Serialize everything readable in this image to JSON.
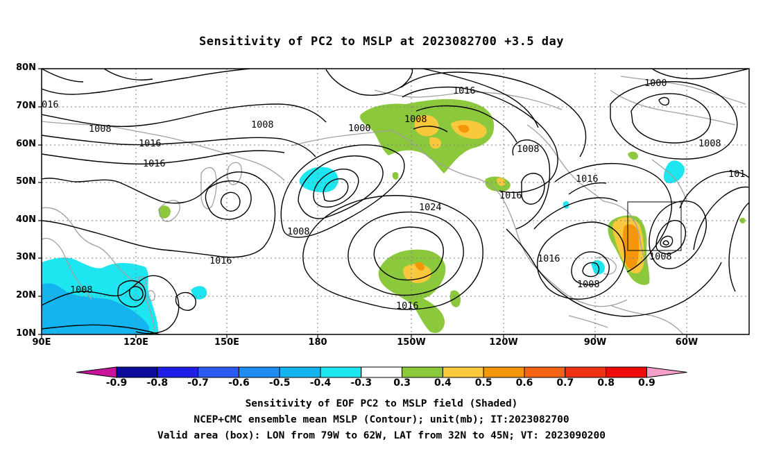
{
  "title": "Sensitivity of PC2 to MSLP at 2023082700 +3.5 day",
  "map": {
    "lat_ticks": [
      "80N",
      "70N",
      "60N",
      "50N",
      "40N",
      "30N",
      "20N",
      "10N"
    ],
    "lon_ticks": [
      "90E",
      "120E",
      "150E",
      "180",
      "150W",
      "120W",
      "90W",
      "60W"
    ],
    "lon_range": [
      "90E",
      "40W"
    ],
    "lat_range": [
      "10N",
      "80N"
    ],
    "grid": true,
    "contour_labels": [
      {
        "id": "c1",
        "text": "1016"
      },
      {
        "id": "c2",
        "text": "1008"
      },
      {
        "id": "c3",
        "text": "1016"
      },
      {
        "id": "c4",
        "text": "1016"
      },
      {
        "id": "c5",
        "text": "1008"
      },
      {
        "id": "c6",
        "text": "1016"
      },
      {
        "id": "c7",
        "text": "1008"
      },
      {
        "id": "c8",
        "text": "1008"
      },
      {
        "id": "c9",
        "text": "1000"
      },
      {
        "id": "c10",
        "text": "1008"
      },
      {
        "id": "c11",
        "text": "1016"
      },
      {
        "id": "c12",
        "text": "1024"
      },
      {
        "id": "c13",
        "text": "1016"
      },
      {
        "id": "c14",
        "text": "1008"
      },
      {
        "id": "c15",
        "text": "1016"
      },
      {
        "id": "c16",
        "text": "1016"
      },
      {
        "id": "c17",
        "text": "1008"
      },
      {
        "id": "c18",
        "text": "1008"
      },
      {
        "id": "c19",
        "text": "1016"
      },
      {
        "id": "c20",
        "text": "1008"
      },
      {
        "id": "c21",
        "text": "1000"
      },
      {
        "id": "c22",
        "text": "1008"
      },
      {
        "id": "c23",
        "text": "101"
      }
    ],
    "valid_box": {
      "lon_from": "79W",
      "lon_to": "62W",
      "lat_from": "32N",
      "lat_to": "45N"
    }
  },
  "colorbar": {
    "labels": [
      "-0.9",
      "-0.8",
      "-0.7",
      "-0.6",
      "-0.5",
      "-0.4",
      "-0.3",
      "0.3",
      "0.4",
      "0.5",
      "0.6",
      "0.7",
      "0.8",
      "0.9"
    ],
    "colors": [
      "#0a0a9c",
      "#1e1ee6",
      "#2a5af0",
      "#1e8cf0",
      "#14b4f0",
      "#1ee6f0",
      "#ffffff",
      "#8cc83c",
      "#fac83c",
      "#f5960a",
      "#f56414",
      "#f03214",
      "#f00a0a"
    ],
    "left_arrow_color": "#c8149c",
    "right_arrow_color": "#f5a0c8"
  },
  "captions": {
    "line1": "Sensitivity of EOF PC2 to MSLP field (Shaded)",
    "line2": "NCEP+CMC ensemble mean MSLP (Contour); unit(mb); IT:2023082700",
    "line3": "Valid area (box): LON from 79W to 62W, LAT from 32N to 45N; VT: 2023090200"
  }
}
